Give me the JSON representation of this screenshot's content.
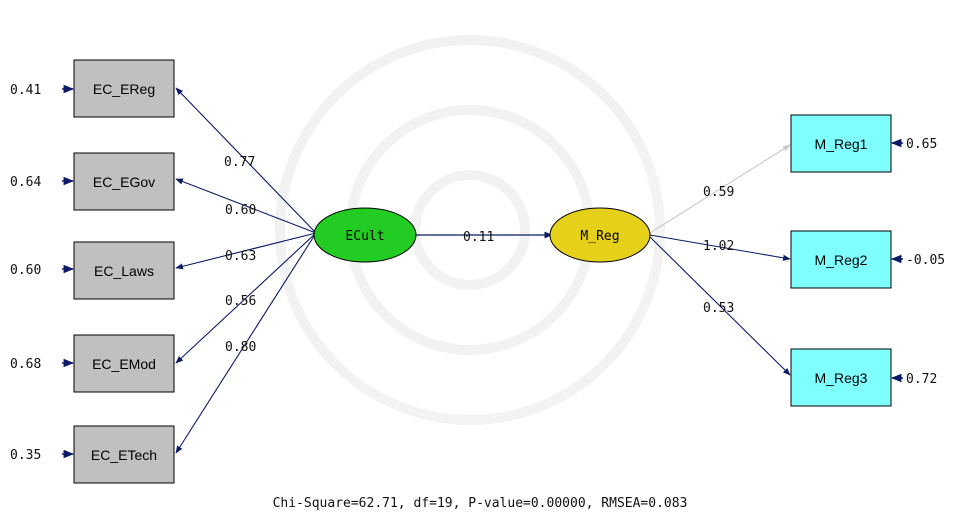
{
  "colors": {
    "left_box": "#c0c0c0",
    "right_box": "#80ffff",
    "latent_exog": "#22cc22",
    "latent_endog": "#e6d11a",
    "path": "#0b1a66",
    "path_light": "#c8c8c8"
  },
  "latent": {
    "exog": {
      "label": "ECult"
    },
    "endog": {
      "label": "M_Reg"
    }
  },
  "left_indicators": [
    {
      "label": "EC_EReg",
      "error": "0.41",
      "loading": "0.77"
    },
    {
      "label": "EC_EGov",
      "error": "0.64",
      "loading": "0.60"
    },
    {
      "label": "EC_Laws",
      "error": "0.60",
      "loading": "0.63"
    },
    {
      "label": "EC_EMod",
      "error": "0.68",
      "loading": "0.56"
    },
    {
      "label": "EC_ETech",
      "error": "0.35",
      "loading": "0.80"
    }
  ],
  "right_indicators": [
    {
      "label": "M_Reg1",
      "error": "0.65",
      "loading": "0.59"
    },
    {
      "label": "M_Reg2",
      "error": "-0.05",
      "loading": "1.02"
    },
    {
      "label": "M_Reg3",
      "error": "0.72",
      "loading": "0.53"
    }
  ],
  "structural_path": {
    "label": "0.11"
  },
  "fit_line": "Chi-Square=62.71, df=19, P-value=0.00000, RMSEA=0.083"
}
